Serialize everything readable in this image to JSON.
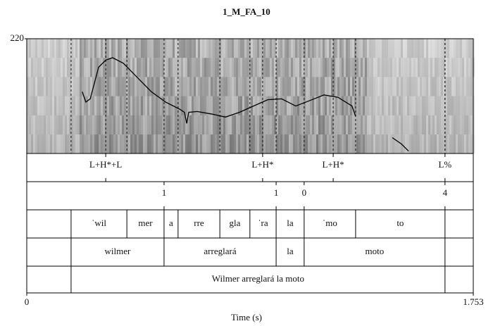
{
  "chart_data": {
    "type": "praat",
    "title": "1_M_FA_10",
    "xlabel": "Time (s)",
    "xlim": [
      0,
      1.753
    ],
    "xticks": [
      0,
      1.753
    ],
    "ylim": [
      75,
      220
    ],
    "yticks": [
      220
    ],
    "pitch": {
      "color": "#000000",
      "x": [
        0.218,
        0.232,
        0.249,
        0.282,
        0.31,
        0.337,
        0.379,
        0.434,
        0.489,
        0.545,
        0.6,
        0.619,
        0.628,
        0.636,
        0.669,
        0.724,
        0.78,
        0.835,
        0.89,
        0.946,
        1.001,
        1.056,
        1.112,
        1.167,
        1.222,
        1.277,
        1.291,
        1.35,
        1.435,
        1.471,
        1.499
      ],
      "values": [
        153,
        140,
        144,
        184,
        193,
        196,
        189,
        171,
        153,
        140,
        131,
        127,
        113,
        127,
        128,
        125,
        121,
        127,
        135,
        143,
        144,
        135,
        142,
        149,
        146,
        135,
        122,
        null,
        95,
        87,
        78
      ]
    },
    "tiers": [
      {
        "kind": "point",
        "times": [
          0.31,
          0.926,
          1.203,
          1.642
        ],
        "labels": [
          "L+H*+L",
          "L+H*",
          "L+H*",
          "L%"
        ]
      },
      {
        "kind": "point",
        "times": [
          0.539,
          0.979,
          1.089,
          1.642
        ],
        "labels": [
          "1",
          "1",
          "0",
          "4"
        ]
      },
      {
        "kind": "interval",
        "boundaries": [
          0.174,
          0.393,
          0.539,
          0.594,
          0.758,
          0.876,
          0.979,
          1.089,
          1.291,
          1.642
        ],
        "labels": [
          null,
          "ˈwil",
          "mer",
          "a",
          "rre",
          "gla",
          "ˈra",
          "la",
          "ˈmo",
          "to",
          null
        ]
      },
      {
        "kind": "interval",
        "boundaries": [
          0.174,
          0.539,
          0.979,
          1.089,
          1.642
        ],
        "labels": [
          null,
          "wilmer",
          "arreglará",
          "la",
          "moto",
          null
        ]
      },
      {
        "kind": "interval",
        "boundaries": [
          0.174,
          1.642
        ],
        "labels": [
          null,
          "Wilmer arreglará la moto",
          null
        ]
      }
    ]
  }
}
